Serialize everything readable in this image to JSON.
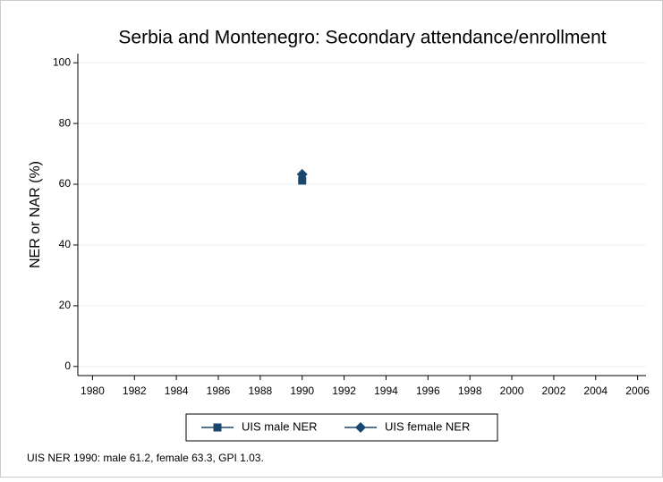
{
  "chart_data": {
    "type": "scatter",
    "title": "Serbia and Montenegro: Secondary attendance/enrollment",
    "y_label": "NER or NAR (%)",
    "x": [
      1990
    ],
    "series": [
      {
        "name": "UIS male NER",
        "color": "#1a476f",
        "marker": "square",
        "values": [
          61.2
        ]
      },
      {
        "name": "UIS female NER",
        "color": "#1a476f",
        "marker": "diamond",
        "values": [
          63.3
        ]
      }
    ],
    "xlim": [
      1979.3,
      2006.4
    ],
    "xticks": [
      1980,
      1982,
      1984,
      1986,
      1988,
      1990,
      1992,
      1994,
      1996,
      1998,
      2000,
      2002,
      2004,
      2006
    ],
    "ylim": [
      -3,
      103
    ],
    "yticks": [
      0,
      20,
      40,
      60,
      80,
      100
    ],
    "grid": true,
    "legend": "bottom",
    "note": "UIS NER 1990: male 61.2, female 63.3, GPI 1.03."
  }
}
